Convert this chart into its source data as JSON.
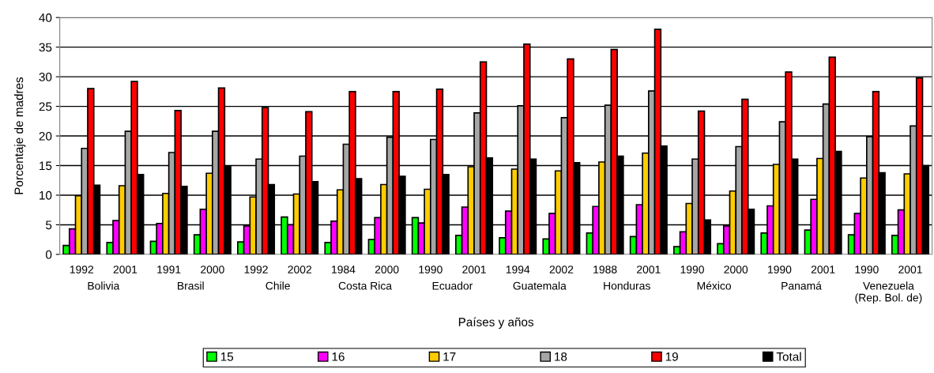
{
  "chart_data": {
    "type": "bar",
    "xlabel": "Países y años",
    "ylabel": "Porcentaje de madres",
    "categories": [
      "1992",
      "2001",
      "1991",
      "2000",
      "1992",
      "2002",
      "1984",
      "2000",
      "1990",
      "2001",
      "1994",
      "2002",
      "1988",
      "2001",
      "1990",
      "2000",
      "1990",
      "2001",
      "1990",
      "2001"
    ],
    "annotations": [
      "Bolivia",
      "Brasil",
      "Chile",
      "Costa Rica",
      "Ecuador",
      "Guatemala",
      "Honduras",
      "México",
      "Panamá",
      "Venezuela\n(Rep. Bol. de)"
    ],
    "series": [
      {
        "name": "15",
        "color": "#00ff00",
        "values": [
          1.5,
          2.0,
          2.2,
          3.3,
          2.1,
          6.3,
          2.0,
          2.5,
          6.2,
          3.2,
          2.8,
          2.6,
          3.6,
          3.0,
          1.3,
          1.8,
          3.6,
          4.1,
          3.3,
          3.2
        ]
      },
      {
        "name": "16",
        "color": "#ff00ff",
        "values": [
          4.3,
          5.7,
          5.2,
          7.6,
          4.8,
          5.0,
          5.6,
          6.2,
          5.3,
          8.0,
          7.3,
          6.9,
          8.1,
          8.4,
          3.8,
          4.8,
          8.2,
          9.3,
          6.9,
          7.5
        ]
      },
      {
        "name": "17",
        "color": "#ffcc00",
        "values": [
          9.9,
          11.6,
          10.3,
          13.7,
          9.7,
          10.2,
          10.9,
          11.8,
          11.0,
          14.8,
          14.4,
          14.1,
          15.6,
          17.1,
          8.6,
          10.7,
          15.2,
          16.2,
          12.9,
          13.6
        ]
      },
      {
        "name": "18",
        "color": "#a6a6a6",
        "values": [
          17.9,
          20.8,
          17.2,
          20.8,
          16.1,
          16.6,
          18.6,
          19.8,
          19.4,
          23.9,
          25.1,
          23.1,
          25.2,
          27.6,
          16.1,
          18.2,
          22.4,
          25.4,
          19.9,
          21.7
        ]
      },
      {
        "name": "19",
        "color": "#ff0000",
        "values": [
          28.0,
          29.2,
          24.3,
          28.1,
          24.8,
          24.1,
          27.5,
          27.5,
          27.9,
          32.5,
          35.5,
          33.0,
          34.6,
          38.0,
          24.2,
          26.2,
          30.8,
          33.3,
          27.5,
          29.8
        ]
      },
      {
        "name": "Total",
        "color": "#000000",
        "values": [
          11.7,
          13.5,
          11.5,
          14.9,
          11.8,
          12.3,
          12.8,
          13.2,
          13.5,
          16.3,
          16.1,
          15.5,
          16.6,
          18.3,
          5.8,
          7.6,
          16.1,
          17.4,
          13.8,
          15.0
        ]
      }
    ],
    "ylim": [
      0,
      40
    ],
    "yticks": [
      0,
      5,
      10,
      15,
      20,
      25,
      30,
      35,
      40
    ],
    "grid": "y",
    "legend": "bottom"
  }
}
